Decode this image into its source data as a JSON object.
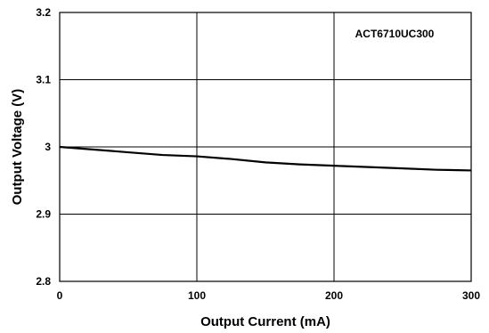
{
  "chart_data": {
    "type": "line",
    "title": "",
    "xlabel": "Output Current (mA)",
    "ylabel": "Output Voltage (V)",
    "xlim": [
      0,
      300
    ],
    "ylim": [
      2.8,
      3.2
    ],
    "x_ticks": [
      0,
      100,
      200,
      300
    ],
    "x_tick_labels": [
      "0",
      "100",
      "200",
      "300"
    ],
    "y_ticks": [
      2.8,
      2.9,
      3.0,
      3.1,
      3.2
    ],
    "y_tick_labels": [
      "2.8",
      "2.9",
      "3",
      "3.1",
      "3.2"
    ],
    "grid": true,
    "annotation": "ACT6710UC300",
    "series": [
      {
        "color": "#000000",
        "x": [
          0,
          25,
          50,
          75,
          100,
          125,
          150,
          175,
          200,
          225,
          250,
          275,
          300
        ],
        "y": [
          3.0,
          2.996,
          2.992,
          2.988,
          2.986,
          2.982,
          2.977,
          2.974,
          2.972,
          2.97,
          2.968,
          2.966,
          2.965
        ]
      }
    ]
  }
}
